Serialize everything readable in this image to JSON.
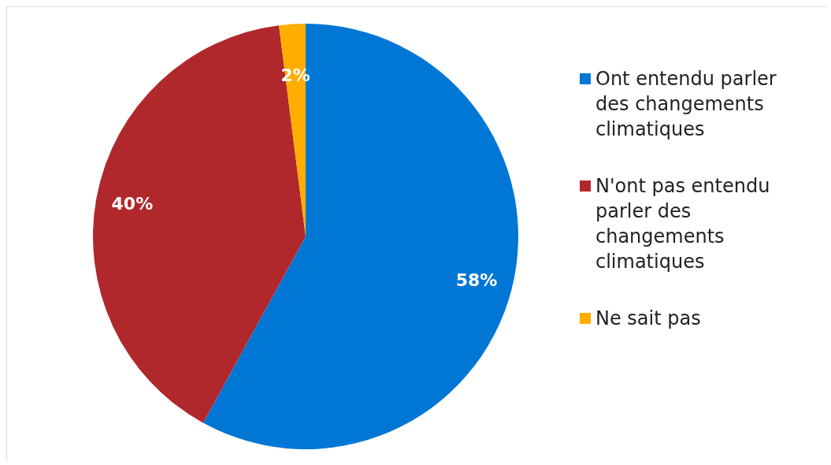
{
  "chart_data": {
    "type": "pie",
    "categories": [
      "Ont entendu parler des changements climatiques",
      "N'ont pas entendu parler des changements climatiques",
      "Ne sait pas"
    ],
    "values": [
      58,
      40,
      2
    ],
    "colors": [
      "#0077d4",
      "#b0282c",
      "#ffae00"
    ],
    "value_labels": [
      "58%",
      "40%",
      "2%"
    ],
    "legend": "right"
  }
}
